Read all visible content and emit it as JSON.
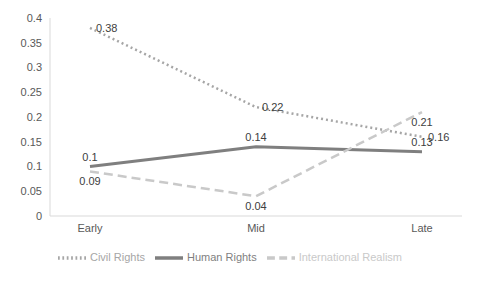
{
  "chart_data": {
    "type": "line",
    "categories": [
      "Early",
      "Mid",
      "Late"
    ],
    "series": [
      {
        "name": "Human Rights",
        "color": "#7f7f7f",
        "line_style": "solid",
        "values": [
          0.1,
          0.14,
          0.13
        ]
      },
      {
        "name": "Civil Rights",
        "color": "#a6a6a6",
        "line_style": "dotted",
        "values": [
          0.38,
          0.22,
          0.16
        ]
      },
      {
        "name": "International Realism",
        "color": "#c9c9c9",
        "line_style": "dashed",
        "values": [
          0.09,
          0.04,
          0.21
        ]
      }
    ],
    "ylim": [
      0,
      0.4
    ],
    "yticks": [
      0,
      0.05,
      0.1,
      0.15,
      0.2,
      0.25,
      0.3,
      0.35,
      0.4
    ],
    "grid": false,
    "legend": "bottom",
    "data_labels": true
  }
}
